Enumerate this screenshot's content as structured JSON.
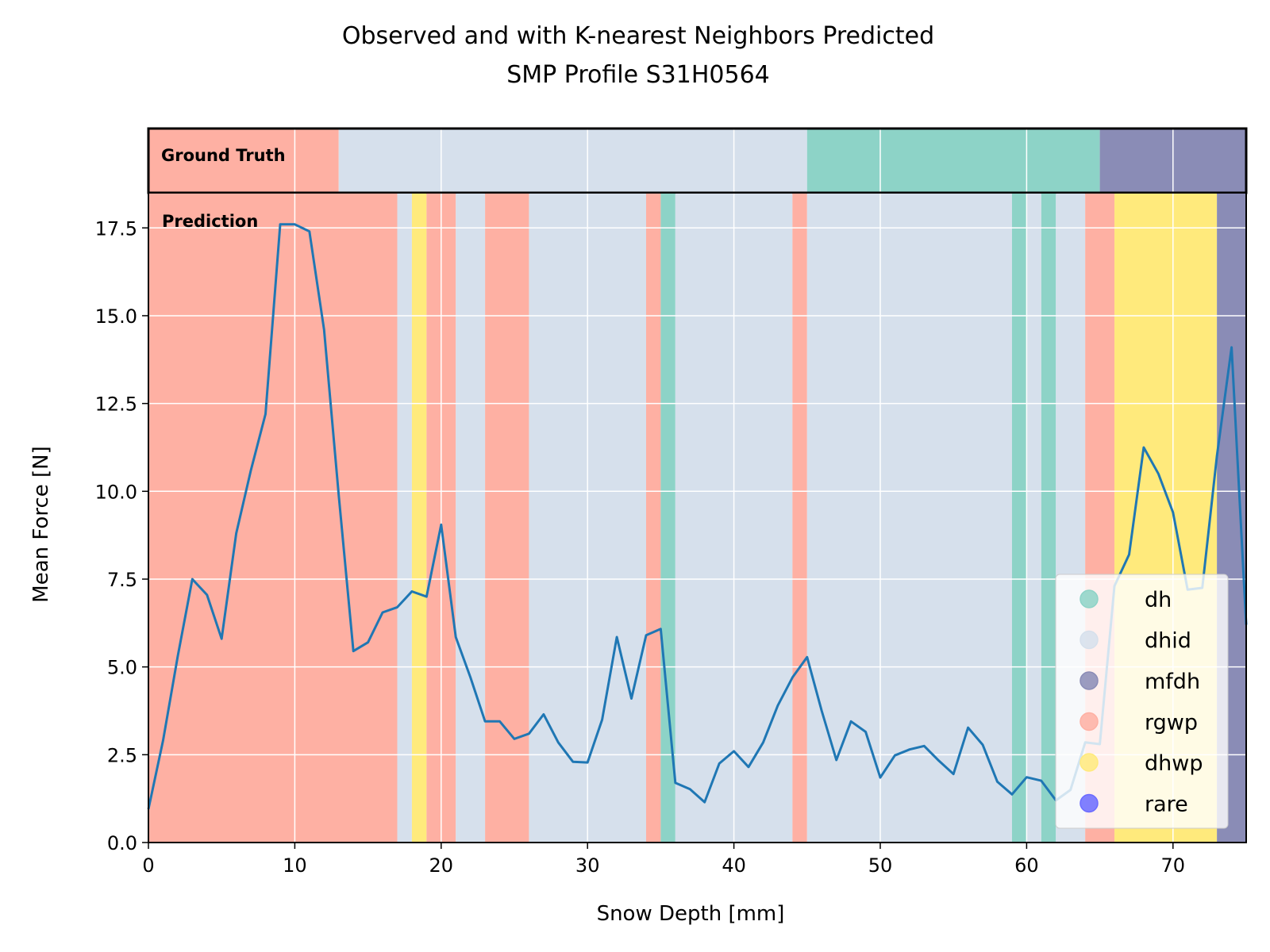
{
  "chart_data": {
    "type": "line",
    "title_line1": "Observed and with K-nearest Neighbors Predicted",
    "title_line2": "SMP Profile S31H0564",
    "xlabel": "Snow Depth [mm]",
    "ylabel": "Mean Force [N]",
    "xlim": [
      0,
      75
    ],
    "ylim": [
      0,
      18.5
    ],
    "xticks": [
      0,
      10,
      20,
      30,
      40,
      50,
      60,
      70
    ],
    "yticks": [
      "0.0",
      "2.5",
      "5.0",
      "7.5",
      "10.0",
      "12.5",
      "15.0",
      "17.5"
    ],
    "grid": true,
    "legend_position": "lower-right",
    "ground_truth_label": "Ground Truth",
    "prediction_label": "Prediction",
    "classes": [
      {
        "name": "dh",
        "color": "#8dd3c7"
      },
      {
        "name": "dhid",
        "color": "#d6e0ec"
      },
      {
        "name": "mfdh",
        "color": "#8a8cb6"
      },
      {
        "name": "rgwp",
        "color": "#feb0a3"
      },
      {
        "name": "dhwp",
        "color": "#ffea7c"
      },
      {
        "name": "rare",
        "color": "#6b6bff"
      }
    ],
    "ground_truth": [
      {
        "from": 0,
        "to": 13,
        "class": "rgwp"
      },
      {
        "from": 13,
        "to": 45,
        "class": "dhid"
      },
      {
        "from": 45,
        "to": 65,
        "class": "dh"
      },
      {
        "from": 65,
        "to": 75,
        "class": "mfdh"
      }
    ],
    "prediction": [
      {
        "from": 0,
        "to": 17,
        "class": "rgwp"
      },
      {
        "from": 17,
        "to": 18,
        "class": "dhid"
      },
      {
        "from": 18,
        "to": 19,
        "class": "dhwp"
      },
      {
        "from": 19,
        "to": 21,
        "class": "rgwp"
      },
      {
        "from": 21,
        "to": 23,
        "class": "dhid"
      },
      {
        "from": 23,
        "to": 26,
        "class": "rgwp"
      },
      {
        "from": 26,
        "to": 34,
        "class": "dhid"
      },
      {
        "from": 34,
        "to": 35,
        "class": "rgwp"
      },
      {
        "from": 35,
        "to": 36,
        "class": "dh"
      },
      {
        "from": 36,
        "to": 44,
        "class": "dhid"
      },
      {
        "from": 44,
        "to": 45,
        "class": "rgwp"
      },
      {
        "from": 45,
        "to": 59,
        "class": "dhid"
      },
      {
        "from": 59,
        "to": 60,
        "class": "dh"
      },
      {
        "from": 60,
        "to": 61,
        "class": "dhid"
      },
      {
        "from": 61,
        "to": 62,
        "class": "dh"
      },
      {
        "from": 62,
        "to": 64,
        "class": "dhid"
      },
      {
        "from": 64,
        "to": 66,
        "class": "rgwp"
      },
      {
        "from": 66,
        "to": 73,
        "class": "dhwp"
      },
      {
        "from": 73,
        "to": 75,
        "class": "mfdh"
      }
    ],
    "series": [
      {
        "name": "Mean Force",
        "color": "#1f77b4",
        "x": [
          0,
          1,
          2,
          3,
          4,
          5,
          6,
          7,
          8,
          9,
          10,
          11,
          12,
          13,
          14,
          15,
          16,
          17,
          18,
          19,
          20,
          21,
          22,
          23,
          24,
          25,
          26,
          27,
          28,
          29,
          30,
          31,
          32,
          33,
          34,
          35,
          36,
          37,
          38,
          39,
          40,
          41,
          42,
          43,
          44,
          45,
          46,
          47,
          48,
          49,
          50,
          51,
          52,
          53,
          54,
          55,
          56,
          57,
          58,
          59,
          60,
          61,
          62,
          63,
          64,
          65,
          66,
          67,
          68,
          69,
          70,
          71,
          72,
          73,
          74,
          75
        ],
        "y": [
          0.95,
          2.9,
          5.3,
          7.5,
          7.05,
          5.8,
          8.8,
          10.6,
          12.2,
          17.6,
          17.6,
          17.4,
          14.6,
          9.9,
          5.45,
          5.7,
          6.55,
          6.7,
          7.15,
          7.0,
          9.05,
          5.85,
          4.7,
          3.45,
          3.45,
          2.95,
          3.1,
          3.65,
          2.85,
          2.3,
          2.28,
          3.5,
          5.85,
          4.1,
          5.9,
          6.08,
          1.7,
          1.52,
          1.15,
          2.25,
          2.6,
          2.15,
          2.85,
          3.9,
          4.7,
          5.28,
          3.75,
          2.35,
          3.45,
          3.15,
          1.85,
          2.48,
          2.65,
          2.75,
          2.33,
          1.95,
          3.27,
          2.78,
          1.73,
          1.37,
          1.86,
          1.76,
          1.2,
          1.5,
          2.85,
          2.8,
          7.3,
          8.2,
          11.25,
          10.5,
          9.4,
          7.2,
          7.25,
          11.0,
          14.1,
          6.2
        ]
      }
    ]
  }
}
